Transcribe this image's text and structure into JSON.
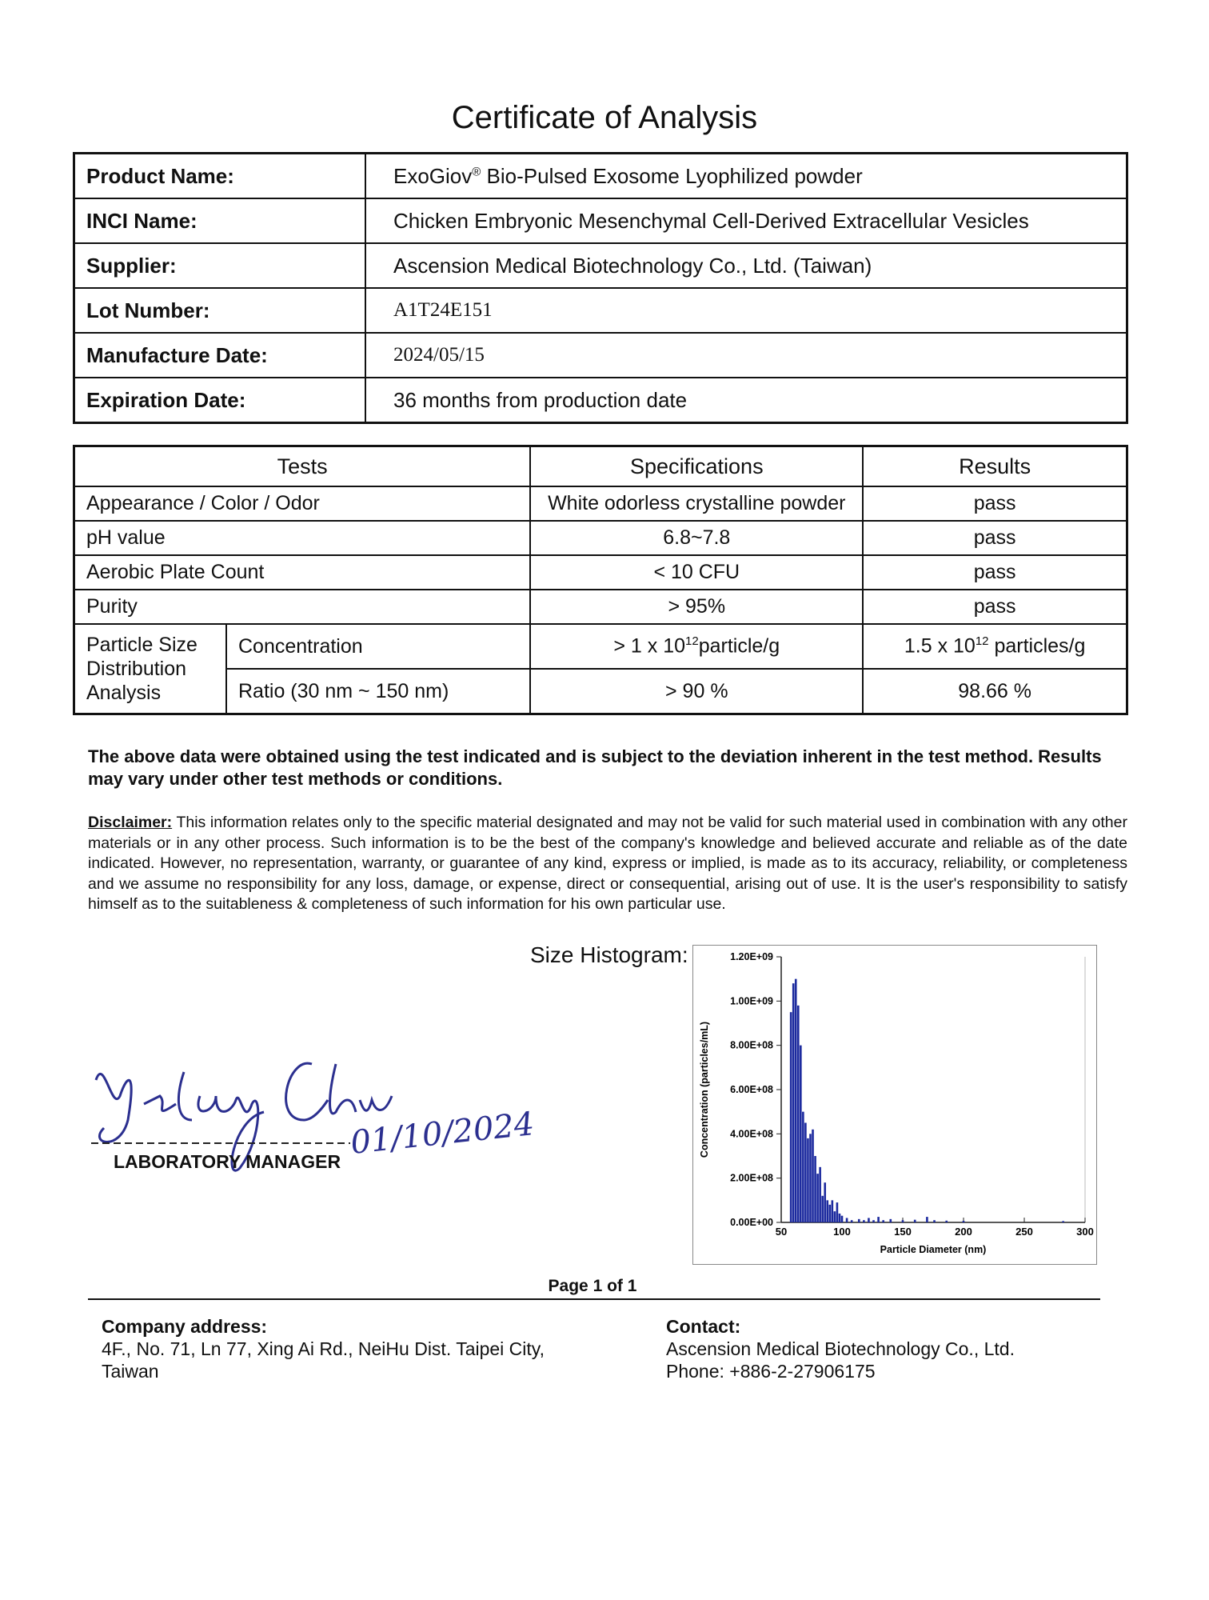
{
  "header": {
    "title": "Certificate of Analysis"
  },
  "info_table": {
    "rows": [
      {
        "label": "Product Name:",
        "value": {
          "pre": "ExoGiov",
          "sup": "®",
          "post": " Bio-Pulsed Exosome Lyophilized powder"
        }
      },
      {
        "label": "INCI Name:",
        "value": "Chicken Embryonic Mesenchymal Cell-Derived Extracellular Vesicles"
      },
      {
        "label": "Supplier:",
        "value": "Ascension Medical Biotechnology Co., Ltd. (Taiwan)"
      },
      {
        "label": "Lot Number:",
        "value": "A1T24E151"
      },
      {
        "label": "Manufacture Date:",
        "value": "2024/05/15"
      },
      {
        "label": "Expiration Date:",
        "value": "36 months from production date"
      }
    ]
  },
  "tests_table": {
    "header": [
      "Tests",
      "Specifications",
      "Results"
    ],
    "rows": [
      [
        "Appearance / Color / Odor",
        "White odorless crystalline powder",
        "pass"
      ],
      [
        "pH value",
        "6.8~7.8",
        "pass"
      ],
      [
        "Aerobic Plate Count",
        "< 10 CFU",
        "pass"
      ],
      [
        "Purity",
        "> 95%",
        "pass"
      ]
    ],
    "group": {
      "label": "Particle Size Distribution Analysis",
      "rows": [
        {
          "test": "Concentration",
          "spec": {
            "pre": "> 1 x 10",
            "sup": "12",
            "post": "particle/g"
          },
          "result": {
            "pre": "1.5 x 10",
            "sup": "12",
            "post": " particles/g"
          }
        },
        {
          "test": "Ratio (30 nm ~ 150 nm)",
          "spec": "> 90 %",
          "result": "98.66 %"
        }
      ]
    }
  },
  "note": "The above data were obtained using the test indicated and is subject to the deviation inherent in the test method. Results may vary under other test methods or conditions.",
  "disclaimer": {
    "label": "Disclaimer:",
    "text": "This information relates only to the specific material designated and may not be valid for such material used in combination with any other materials or in any other process. Such information is to be the best of the company's knowledge and believed accurate and reliable as of the date indicated. However, no representation, warranty, or guarantee of any kind, express or implied, is made as to its accuracy, reliability, or completeness and we assume no responsibility for any loss, damage, or expense, direct or consequential, arising out of use. It is the user's responsibility to satisfy himself as to the suitableness & completeness of such information for his own particular use."
  },
  "histogram_label": "Size Histogram:",
  "signature": {
    "date": "01/10/2024",
    "role": "LABORATORY MANAGER"
  },
  "footer": {
    "page": "Page 1 of 1",
    "address": {
      "label": "Company address:",
      "lines": [
        "4F., No. 71, Ln 77, Xing Ai Rd., NeiHu Dist. Taipei City,",
        "Taiwan"
      ]
    },
    "contact": {
      "label": "Contact:",
      "lines": [
        "Ascension Medical Biotechnology Co., Ltd.",
        "Phone: +886-2-27906175"
      ]
    }
  },
  "chart_data": {
    "type": "bar",
    "color": "#1c2a9e",
    "x_label": "Particle Diameter (nm)",
    "y_label": "Concentration (particles/mL)",
    "x": [
      58,
      60,
      62,
      64,
      66,
      68,
      70,
      72,
      74,
      76,
      78,
      80,
      82,
      84,
      86,
      88,
      90,
      92,
      94,
      96,
      98,
      100,
      104,
      108,
      114,
      118,
      122,
      126,
      130,
      134,
      140,
      150,
      160,
      170,
      176,
      186,
      200,
      282
    ],
    "values": [
      950000000,
      1080000000,
      1100000000,
      980000000,
      800000000,
      500000000,
      450000000,
      380000000,
      400000000,
      420000000,
      300000000,
      220000000,
      250000000,
      120000000,
      180000000,
      100000000,
      80000000,
      100000000,
      50000000,
      90000000,
      40000000,
      30000000,
      20000000,
      10000000,
      15000000,
      10000000,
      20000000,
      10000000,
      25000000,
      10000000,
      15000000,
      10000000,
      12000000,
      25000000,
      10000000,
      8000000,
      7000000,
      6000000
    ],
    "xlim": [
      50,
      300
    ],
    "xticks": [
      50,
      100,
      150,
      200,
      250,
      300
    ],
    "ylim": [
      0,
      1200000000
    ],
    "yticks": [
      {
        "value": 0,
        "label": "0.00E+00"
      },
      {
        "value": 200000000,
        "label": "2.00E+08"
      },
      {
        "value": 400000000,
        "label": "4.00E+08"
      },
      {
        "value": 600000000,
        "label": "6.00E+08"
      },
      {
        "value": 800000000,
        "label": "8.00E+08"
      },
      {
        "value": 1000000000,
        "label": "1.00E+09"
      },
      {
        "value": 1200000000,
        "label": "1.20E+09"
      }
    ]
  }
}
